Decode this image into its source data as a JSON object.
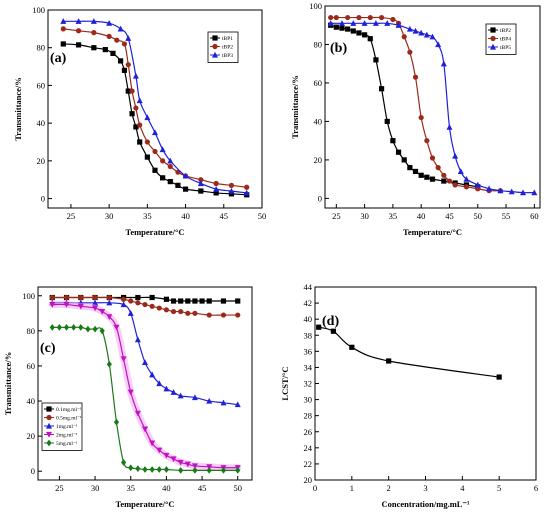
{
  "chart_data": [
    {
      "type": "line",
      "panel_label": "(a)",
      "xlabel": "Temperature/°C",
      "ylabel": "Transmittance/%",
      "xlim": [
        22,
        50
      ],
      "ylim": [
        -5,
        100
      ],
      "xticks": [
        25,
        30,
        35,
        40,
        45,
        50
      ],
      "yticks": [
        0,
        20,
        40,
        60,
        80,
        100
      ],
      "legend_position": "top-right",
      "series": [
        {
          "name": "tBP1",
          "color": "#000000",
          "marker": "square",
          "x": [
            24,
            26,
            28,
            29.5,
            30.5,
            31.5,
            32,
            32.5,
            33,
            33.5,
            34,
            35,
            36,
            37,
            38,
            39,
            40,
            42,
            44,
            46,
            48
          ],
          "y": [
            82,
            81.5,
            80,
            79,
            77,
            73,
            68,
            57,
            45,
            38,
            30,
            22,
            15,
            11,
            9,
            7,
            5,
            4,
            3,
            2.5,
            2
          ]
        },
        {
          "name": "tBP2",
          "color": "#9b2a1a",
          "marker": "circle",
          "x": [
            24,
            26,
            28,
            30,
            31,
            32,
            32.5,
            33,
            33.5,
            34,
            35,
            36,
            37,
            38,
            39,
            40,
            42,
            44,
            46,
            48
          ],
          "y": [
            90,
            89,
            88,
            86,
            84,
            82,
            71,
            57,
            48,
            39,
            30,
            25,
            20,
            17,
            14,
            12,
            10,
            8,
            7,
            6
          ]
        },
        {
          "name": "tBP3",
          "color": "#2020d8",
          "marker": "triangle",
          "x": [
            24,
            26,
            28,
            30,
            31.5,
            32.5,
            33.5,
            34,
            35,
            36,
            37,
            38,
            40,
            42,
            44,
            46,
            48
          ],
          "y": [
            94,
            94,
            94,
            93,
            90,
            85,
            65,
            52,
            43,
            35,
            26,
            20,
            12,
            8,
            5,
            4,
            3
          ]
        }
      ]
    },
    {
      "type": "line",
      "panel_label": "(b)",
      "xlabel": "Temperature/°C",
      "ylabel": "Transmittance/%",
      "xlim": [
        23,
        61
      ],
      "ylim": [
        -5,
        100
      ],
      "xticks": [
        25,
        30,
        35,
        40,
        45,
        50,
        55,
        60
      ],
      "yticks": [
        0,
        20,
        40,
        60,
        80,
        100
      ],
      "legend_position": "top-right",
      "series": [
        {
          "name": "tBP2",
          "color": "#000000",
          "marker": "square",
          "x": [
            24,
            25,
            26,
            27,
            28,
            29,
            30,
            31,
            32,
            33,
            34,
            35,
            36,
            37,
            38,
            39,
            40,
            41,
            42,
            44,
            46,
            48,
            50
          ],
          "y": [
            90,
            89,
            88.5,
            88,
            87,
            86,
            85,
            83,
            72,
            57,
            40,
            30,
            24,
            20,
            16,
            14,
            12,
            11,
            10,
            9,
            8,
            7,
            6
          ]
        },
        {
          "name": "tBP4",
          "color": "#9b2a1a",
          "marker": "circle",
          "x": [
            24,
            25,
            27,
            29,
            31,
            33,
            35,
            36,
            37,
            38,
            39,
            40,
            41,
            42,
            43,
            44,
            45,
            46,
            48,
            50,
            52,
            54
          ],
          "y": [
            94,
            94,
            94,
            94,
            94,
            94,
            93,
            91,
            84,
            76,
            63,
            42,
            30,
            21,
            16,
            12,
            9,
            7,
            6,
            5,
            4,
            4
          ]
        },
        {
          "name": "tBP5",
          "color": "#2020d8",
          "marker": "triangle",
          "x": [
            24,
            26,
            28,
            30,
            32,
            34,
            36,
            38,
            39,
            40,
            41,
            42,
            43,
            44,
            45,
            46,
            47,
            48,
            50,
            52,
            54,
            56,
            58,
            60
          ],
          "y": [
            91,
            91,
            91,
            91,
            91,
            91,
            90,
            88,
            87,
            86,
            85,
            84,
            80,
            70,
            37,
            22,
            14,
            10,
            7,
            5,
            4,
            3.5,
            3,
            3
          ]
        }
      ]
    },
    {
      "type": "line",
      "panel_label": "(c)",
      "xlabel": "Temperature/°C",
      "ylabel": "Transmittance/%",
      "xlim": [
        22,
        52
      ],
      "ylim": [
        -5,
        105
      ],
      "xticks": [
        25,
        30,
        35,
        40,
        45,
        50
      ],
      "yticks": [
        0,
        20,
        40,
        60,
        80,
        100
      ],
      "legend_position": "bottom-left",
      "series": [
        {
          "name": "0.1mg.ml⁻¹",
          "color": "#000000",
          "marker": "square",
          "x": [
            24,
            26,
            28,
            30,
            32,
            34,
            36,
            38,
            40,
            41,
            42,
            43,
            44,
            45,
            46,
            48,
            50
          ],
          "y": [
            99,
            99,
            99,
            99,
            99,
            99,
            99,
            99,
            98,
            97,
            97,
            97,
            97,
            97,
            97,
            97,
            97
          ]
        },
        {
          "name": "0.5mg.ml⁻¹",
          "color": "#9b2a1a",
          "marker": "circle",
          "x": [
            24,
            26,
            28,
            30,
            32,
            34,
            35,
            36,
            37,
            38,
            39,
            40,
            41,
            42,
            43,
            44,
            46,
            48,
            50
          ],
          "y": [
            99,
            99,
            99,
            99,
            99,
            98,
            97,
            96,
            95,
            94,
            93,
            92,
            91,
            91,
            90,
            90,
            89,
            89,
            89
          ]
        },
        {
          "name": "1mg.ml⁻¹",
          "color": "#2020d8",
          "marker": "triangle",
          "x": [
            24,
            26,
            28,
            30,
            32,
            34,
            35,
            36,
            37,
            38,
            39,
            40,
            41,
            42,
            44,
            46,
            48,
            50
          ],
          "y": [
            96,
            96,
            96,
            96,
            96,
            95,
            90,
            75,
            62,
            55,
            50,
            47,
            45,
            43,
            42,
            40,
            39,
            38
          ]
        },
        {
          "name": "2mg.ml⁻¹",
          "color": "#c013c0",
          "marker": "triangle-down",
          "x": [
            24,
            26,
            28,
            30,
            31,
            32,
            33,
            34,
            35,
            36,
            37,
            38,
            39,
            40,
            41,
            42,
            43,
            44,
            46,
            48,
            50
          ],
          "y": [
            95,
            95,
            94,
            93,
            91,
            88,
            82,
            64,
            45,
            33,
            24,
            16,
            12,
            9,
            7,
            5,
            4,
            3,
            2.5,
            2,
            2
          ]
        },
        {
          "name": "5mg.ml⁻¹",
          "color": "#1a7a1a",
          "marker": "diamond",
          "x": [
            24,
            25,
            26,
            27,
            28,
            29,
            30,
            31,
            32,
            33,
            34,
            35,
            36,
            37,
            38,
            39,
            40,
            42,
            44,
            46,
            48,
            50
          ],
          "y": [
            82,
            82,
            82,
            82,
            82,
            81,
            81,
            80,
            61,
            28,
            5,
            2,
            1.5,
            1,
            1,
            1,
            1,
            0.5,
            0.5,
            0.5,
            0.5,
            0.5
          ]
        }
      ]
    },
    {
      "type": "line",
      "panel_label": "(d)",
      "xlabel": "Concentration/mg.mL⁻¹",
      "ylabel": "LCST/°C",
      "xlim": [
        0,
        6
      ],
      "ylim": [
        20,
        44
      ],
      "xticks": [
        0,
        1,
        2,
        3,
        4,
        5,
        6
      ],
      "yticks": [
        20,
        22,
        24,
        26,
        28,
        30,
        32,
        34,
        36,
        38,
        40,
        42,
        44
      ],
      "series": [
        {
          "name": "",
          "color": "#000000",
          "marker": "square",
          "x": [
            0.1,
            0.5,
            1,
            2,
            5
          ],
          "y": [
            39,
            38.5,
            36.5,
            34.8,
            32.8
          ]
        }
      ]
    }
  ]
}
